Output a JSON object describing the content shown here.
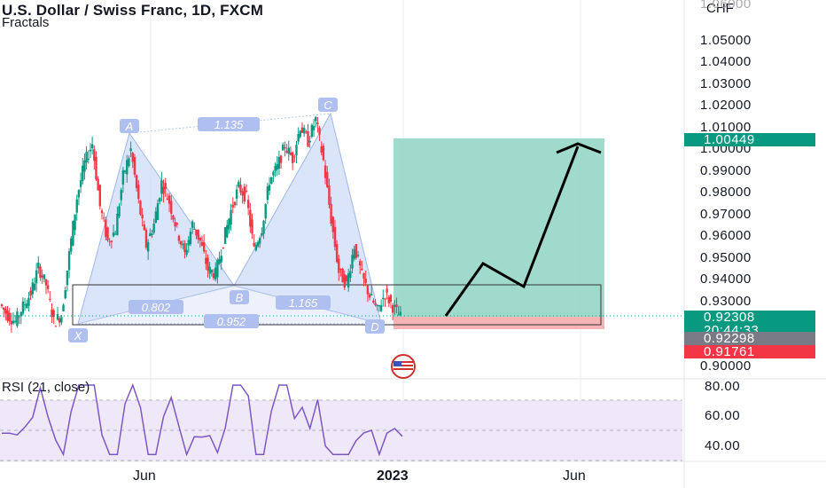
{
  "header": {
    "title": "U.S. Dollar / Swiss Franc, 1D, FXCM",
    "indicator": "Fractals",
    "currency": "CHF"
  },
  "price_axis": {
    "top_partial": "1.06000",
    "labels": [
      "1.05000",
      "1.04000",
      "1.03000",
      "1.02000",
      "1.01000",
      "1.00000",
      "0.99000",
      "0.98000",
      "0.97000",
      "0.96000",
      "0.95000",
      "0.94000",
      "0.93000",
      "0.90000"
    ]
  },
  "tags": {
    "target": "1.00449",
    "current": "0.92308",
    "countdown": "20:44:33",
    "prev_close": "0.92298",
    "stop": "0.91761"
  },
  "pattern": {
    "points": [
      "X",
      "A",
      "B",
      "C",
      "D"
    ],
    "ratios": {
      "xab": "0.802",
      "ac": "1.135",
      "abc": "1.165",
      "xd": "0.952"
    }
  },
  "rsi": {
    "title": "RSI (21, close)",
    "labels": [
      "80.00",
      "60.00",
      "40.00"
    ]
  },
  "time_axis": {
    "labels": [
      "Jun",
      "2023",
      "Jun"
    ]
  },
  "colors": {
    "candle_up": "#089981",
    "candle_down": "#f23645",
    "pattern_fill": "#c8d7f6",
    "profit_zone": "#8fd3c3",
    "loss_zone": "#f7b4b7",
    "rsi_line": "#7e57c2",
    "rsi_band": "#efe8f8",
    "target_tag": "#089981",
    "stop_tag": "#f23645",
    "prev_tag": "#787b86"
  },
  "chart_data": {
    "type": "line",
    "title": "U.S. Dollar / Swiss Franc, 1D, FXCM",
    "symbol": "USDCHF",
    "xlabel": "",
    "ylabel": "CHF",
    "ylim": [
      0.895,
      1.065
    ],
    "harmonic_pattern": {
      "X": 0.9185,
      "A": 1.0115,
      "B": 0.9385,
      "C": 1.0165,
      "D": 0.9185
    },
    "series": [
      {
        "name": "USDCHF",
        "y": [
          0.929,
          0.924,
          0.921,
          0.928,
          0.934,
          0.946,
          0.938,
          0.921,
          0.924,
          0.952,
          0.978,
          0.994,
          1.003,
          0.974,
          0.958,
          0.963,
          0.988,
          1.0,
          0.976,
          0.956,
          0.966,
          0.985,
          0.976,
          0.963,
          0.952,
          0.966,
          0.958,
          0.945,
          0.943,
          0.958,
          0.972,
          0.983,
          0.978,
          0.954,
          0.964,
          0.986,
          0.992,
          1.002,
          0.996,
          1.011,
          1.004,
          1.014,
          0.995,
          0.968,
          0.944,
          0.938,
          0.956,
          0.942,
          0.933,
          0.926,
          0.934,
          0.928,
          0.923
        ]
      },
      {
        "name": "Projection",
        "y": [
          0.923,
          0.948,
          0.937,
          1.003
        ]
      }
    ],
    "annotations": {
      "position": {
        "entry": 0.92308,
        "target": 1.00449,
        "stop": 0.91761
      }
    }
  }
}
